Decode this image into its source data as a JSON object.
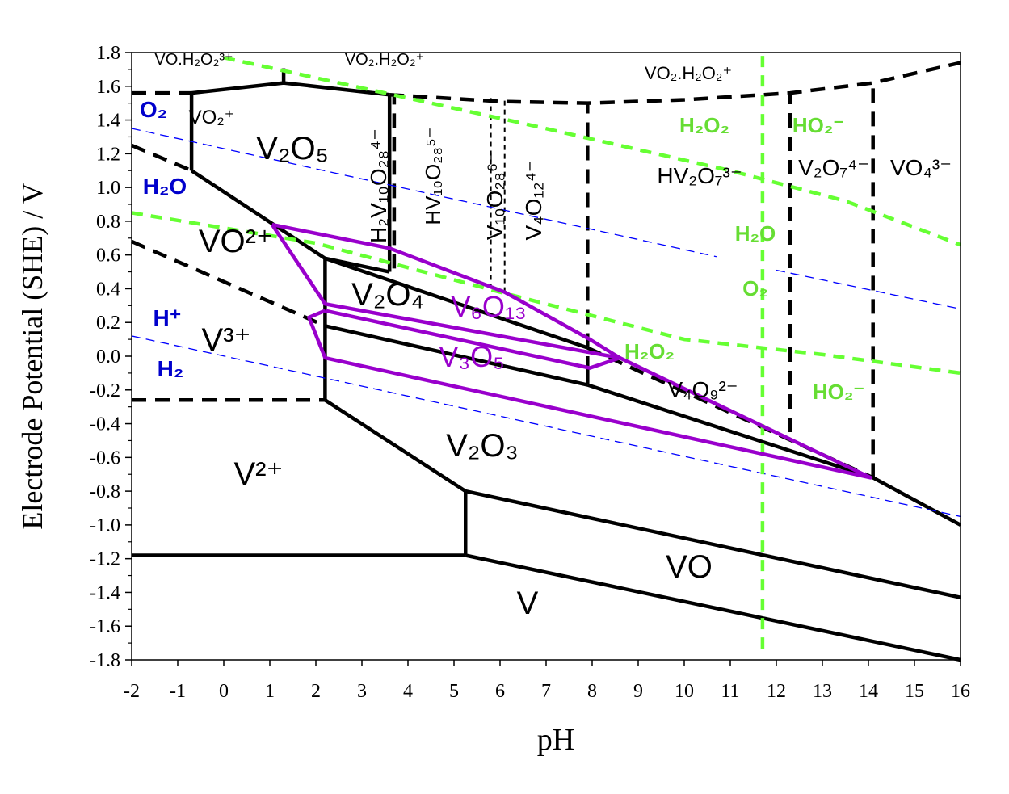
{
  "chart_data": {
    "type": "line",
    "title": "",
    "xlabel": "pH",
    "ylabel": "Electrode Potential (SHE) / V",
    "xlim": [
      -2,
      16
    ],
    "ylim": [
      -1.8,
      1.8
    ],
    "grid": false,
    "x_ticks": [
      "-2",
      "-1",
      "0",
      "1",
      "2",
      "3",
      "4",
      "5",
      "6",
      "7",
      "8",
      "9",
      "10",
      "11",
      "12",
      "13",
      "14",
      "15",
      "16"
    ],
    "y_ticks": [
      "-1.8",
      "-1.6",
      "-1.4",
      "-1.2",
      "-1.0",
      "-0.8",
      "-0.6",
      "-0.4",
      "-0.2",
      "0.0",
      "0.2",
      "0.4",
      "0.6",
      "0.8",
      "1.0",
      "1.2",
      "1.4",
      "1.6",
      "1.8"
    ],
    "colors": {
      "black": "#000000",
      "water_lines": "#0000ff",
      "peroxide_lines": "#66ff33",
      "vox_region": "#9900cc",
      "label_blue": "#0000cc",
      "label_green": "#66dd33",
      "label_purple": "#9900cc"
    },
    "series": [
      {
        "style": "solid-black",
        "points": [
          [
            -2,
            -1.18
          ],
          [
            5.25,
            -1.18
          ]
        ]
      },
      {
        "style": "solid-black",
        "points": [
          [
            5.25,
            -1.18
          ],
          [
            5.25,
            -0.8
          ]
        ]
      },
      {
        "style": "solid-black",
        "points": [
          [
            5.25,
            -1.18
          ],
          [
            16,
            -1.8
          ]
        ]
      },
      {
        "style": "solid-black",
        "points": [
          [
            5.25,
            -0.8
          ],
          [
            16,
            -1.43
          ]
        ]
      },
      {
        "style": "solid-black",
        "points": [
          [
            2.2,
            -0.26
          ],
          [
            5.25,
            -0.8
          ]
        ]
      },
      {
        "style": "solid-black",
        "points": [
          [
            2.2,
            -0.26
          ],
          [
            2.2,
            0.58
          ]
        ]
      },
      {
        "style": "solid-black",
        "points": [
          [
            2.2,
            0.18
          ],
          [
            7.9,
            -0.17
          ]
        ]
      },
      {
        "style": "solid-black",
        "points": [
          [
            7.9,
            -0.17
          ],
          [
            7.9,
            0.0
          ]
        ]
      },
      {
        "style": "solid-black",
        "points": [
          [
            7.9,
            -0.17
          ],
          [
            14.1,
            -0.72
          ]
        ]
      },
      {
        "style": "solid-black",
        "points": [
          [
            14.1,
            -0.72
          ],
          [
            16,
            -1.0
          ]
        ]
      },
      {
        "style": "solid-black",
        "points": [
          [
            2.2,
            0.58
          ],
          [
            7.9,
            0.05
          ]
        ]
      },
      {
        "style": "solid-black",
        "points": [
          [
            -0.7,
            1.1
          ],
          [
            2.2,
            0.58
          ]
        ]
      },
      {
        "style": "solid-black",
        "points": [
          [
            2.2,
            0.58
          ],
          [
            3.6,
            0.5
          ]
        ]
      },
      {
        "style": "solid-black",
        "points": [
          [
            -0.7,
            1.1
          ],
          [
            -0.7,
            1.56
          ]
        ]
      },
      {
        "style": "solid-black",
        "points": [
          [
            -0.7,
            1.56
          ],
          [
            1.3,
            1.62
          ],
          [
            3.6,
            1.55
          ]
        ]
      },
      {
        "style": "solid-black",
        "points": [
          [
            3.6,
            0.5
          ],
          [
            3.6,
            1.55
          ]
        ]
      },
      {
        "style": "dashed-black",
        "points": [
          [
            -2,
            -0.26
          ],
          [
            2.2,
            -0.26
          ]
        ]
      },
      {
        "style": "dashed-black",
        "points": [
          [
            -2,
            0.68
          ],
          [
            2.2,
            0.18
          ]
        ]
      },
      {
        "style": "dashed-black",
        "points": [
          [
            -2,
            1.25
          ],
          [
            -0.7,
            1.1
          ]
        ]
      },
      {
        "style": "dashed-black",
        "points": [
          [
            -2,
            1.56
          ],
          [
            -0.7,
            1.56
          ]
        ]
      },
      {
        "style": "dashed-black",
        "points": [
          [
            1.3,
            1.62
          ],
          [
            1.3,
            1.72
          ]
        ]
      },
      {
        "style": "dashed-black",
        "points": [
          [
            3.6,
            1.55
          ],
          [
            6,
            1.51
          ],
          [
            7.9,
            1.5
          ],
          [
            10,
            1.52
          ],
          [
            12.3,
            1.56
          ],
          [
            14.1,
            1.62
          ],
          [
            16,
            1.74
          ]
        ]
      },
      {
        "style": "dashed-black",
        "points": [
          [
            7.9,
            0.05
          ],
          [
            14.1,
            -0.72
          ]
        ]
      },
      {
        "style": "dashed-black",
        "points": [
          [
            3.7,
            0.52
          ],
          [
            3.7,
            1.55
          ]
        ]
      },
      {
        "style": "dotted-black",
        "points": [
          [
            5.8,
            0.4
          ],
          [
            5.8,
            1.53
          ]
        ]
      },
      {
        "style": "dotted-black",
        "points": [
          [
            6.1,
            0.38
          ],
          [
            6.1,
            1.53
          ]
        ]
      },
      {
        "style": "dashed-black",
        "points": [
          [
            7.9,
            0.05
          ],
          [
            7.9,
            1.5
          ]
        ]
      },
      {
        "style": "dashed-black",
        "points": [
          [
            12.3,
            -0.45
          ],
          [
            12.3,
            1.56
          ]
        ]
      },
      {
        "style": "dashed-black",
        "points": [
          [
            14.1,
            -0.72
          ],
          [
            14.1,
            1.62
          ]
        ]
      },
      {
        "style": "dashed-blue",
        "points": [
          [
            -2,
            0.12
          ],
          [
            16,
            -0.95
          ]
        ]
      },
      {
        "style": "dashed-blue",
        "points": [
          [
            -2,
            1.35
          ],
          [
            10.7,
            0.59
          ]
        ]
      },
      {
        "style": "dashed-blue",
        "points": [
          [
            12,
            0.51
          ],
          [
            16,
            0.28
          ]
        ]
      },
      {
        "style": "dashed-green",
        "points": [
          [
            -2,
            0.85
          ],
          [
            2,
            0.67
          ],
          [
            6,
            0.38
          ],
          [
            10,
            0.1
          ],
          [
            13,
            0.01
          ],
          [
            16,
            -0.1
          ]
        ]
      },
      {
        "style": "dashed-green",
        "points": [
          [
            0,
            1.77
          ],
          [
            6.5,
            1.38
          ],
          [
            11,
            1.1
          ],
          [
            13.5,
            0.92
          ],
          [
            16,
            0.66
          ]
        ]
      },
      {
        "style": "dashed-green",
        "points": [
          [
            11.7,
            1.78
          ],
          [
            11.7,
            -1.78
          ]
        ]
      },
      {
        "style": "solid-purple",
        "points": [
          [
            1.05,
            0.78
          ],
          [
            2.2,
            0.31
          ],
          [
            8.6,
            -0.01
          ],
          [
            7.95,
            0.1
          ],
          [
            6.1,
            0.38
          ],
          [
            3.6,
            0.64
          ],
          [
            1.05,
            0.78
          ]
        ]
      },
      {
        "style": "solid-purple",
        "points": [
          [
            2.2,
            0.27
          ],
          [
            1.85,
            0.23
          ],
          [
            2.2,
            -0.01
          ],
          [
            14.05,
            -0.72
          ],
          [
            8.6,
            -0.01
          ],
          [
            7.95,
            -0.07
          ],
          [
            2.2,
            0.27
          ]
        ]
      }
    ],
    "labels": {
      "v2plus": "V²⁺",
      "v3plus": "V³⁺",
      "vo2plus": "VO²⁺",
      "vo2plus_ox": "VO₂⁺",
      "v2o5": "V₂O₅",
      "v2o4": "V₂O₄",
      "v2o3": "V₂O₃",
      "v6o13": "V₆O₁₃",
      "v3o5": "V₃O₅",
      "vo": "VO",
      "v": "V",
      "h2v10o28": "H₂V₁₀O₂₈⁴⁻",
      "hv10o28": "HV₁₀O₂₈⁵⁻",
      "v10o28": "V₁₀O₂₈⁶⁻",
      "v4o12": "V₄O₁₂⁴⁻",
      "hv2o7": "HV₂O₇³⁻",
      "v2o7": "V₂O₇⁴⁻",
      "vo4": "VO₄³⁻",
      "v4o9": "V₄O₉²⁻",
      "vo_h2o2": "VO.H₂O₂³⁺",
      "vo2_h2o2_left": "VO₂.H₂O₂⁺",
      "vo2_h2o2_right": "VO₂.H₂O₂⁺",
      "o2": "O₂",
      "h2o": "H₂O",
      "hplus": "H⁺",
      "h2": "H₂",
      "h2o2_top": "H₂O₂",
      "ho2_top": "HO₂⁻",
      "h2o_green": "H₂O",
      "o2_green": "O₂",
      "h2o2_mid": "H₂O₂",
      "ho2_bottom": "HO₂⁻"
    }
  }
}
